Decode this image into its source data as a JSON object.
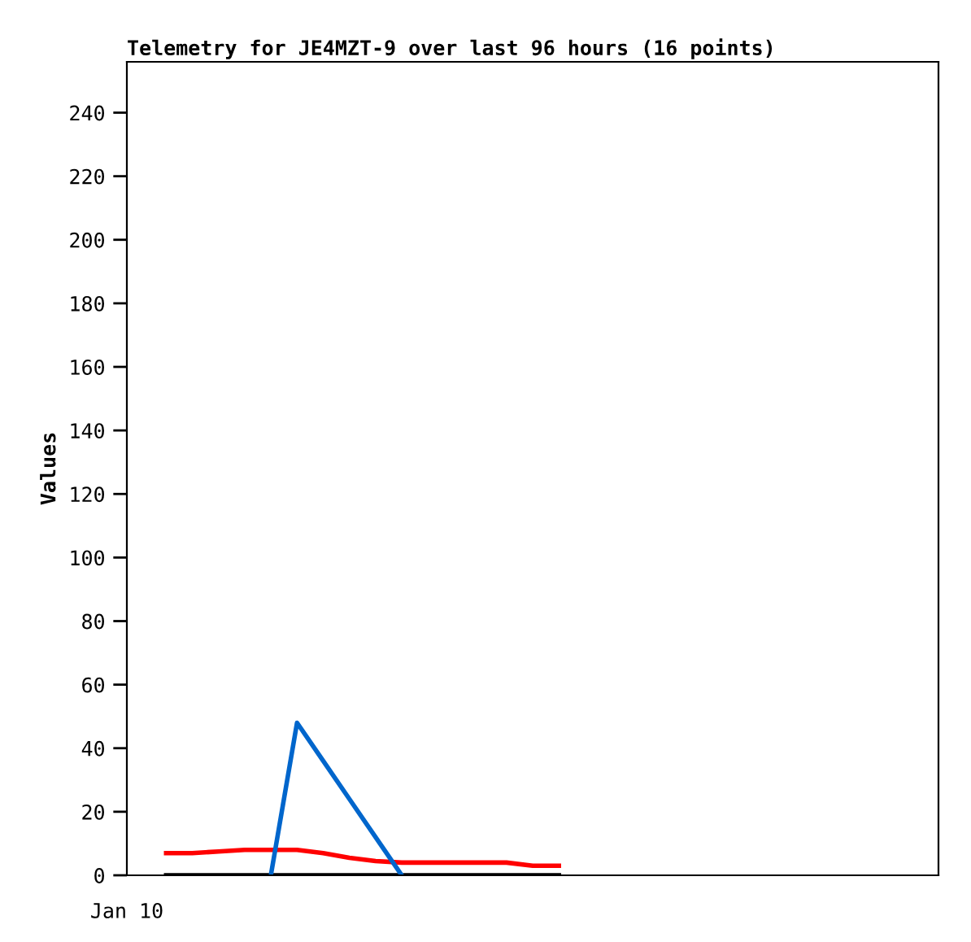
{
  "chart_data": {
    "type": "line",
    "title": "Telemetry for JE4MZT-9 over last 96 hours (16 points)",
    "ylabel": "Values",
    "annotations": [
      "Jan 10"
    ],
    "categories": [
      null,
      null,
      null,
      null,
      null,
      null,
      null,
      null,
      null,
      null,
      null,
      null,
      null,
      null,
      null,
      null,
      null,
      null,
      null,
      null,
      null,
      null,
      null,
      null,
      null,
      null,
      null,
      null,
      null,
      null,
      null
    ],
    "ylim": [
      0,
      256
    ],
    "yticks": [
      0,
      20,
      40,
      60,
      80,
      100,
      120,
      140,
      160,
      180,
      200,
      220,
      240
    ],
    "series": [
      {
        "color": "#000000",
        "values": [
          null,
          0,
          0,
          0,
          0,
          0,
          0,
          0,
          0,
          0,
          0,
          0,
          0,
          0,
          0,
          0,
          0,
          null,
          null,
          null,
          null,
          null,
          null,
          null,
          null,
          null,
          null,
          null,
          null,
          null,
          null
        ]
      },
      {
        "color": "#ff0000",
        "values": [
          null,
          7,
          7,
          7.5,
          8,
          8,
          8,
          7,
          5.5,
          4.5,
          4,
          4,
          4,
          4,
          4,
          3,
          3,
          null,
          null,
          null,
          null,
          null,
          null,
          null,
          null,
          null,
          null,
          null,
          null,
          null,
          null
        ]
      },
      {
        "color": "#0066cc",
        "values": [
          null,
          null,
          null,
          null,
          null,
          0,
          48,
          36,
          24,
          12,
          0,
          null,
          null,
          null,
          null,
          null,
          null,
          null,
          null,
          null,
          null,
          null,
          null,
          null,
          null,
          null,
          null,
          null,
          null,
          null,
          null
        ]
      }
    ]
  }
}
